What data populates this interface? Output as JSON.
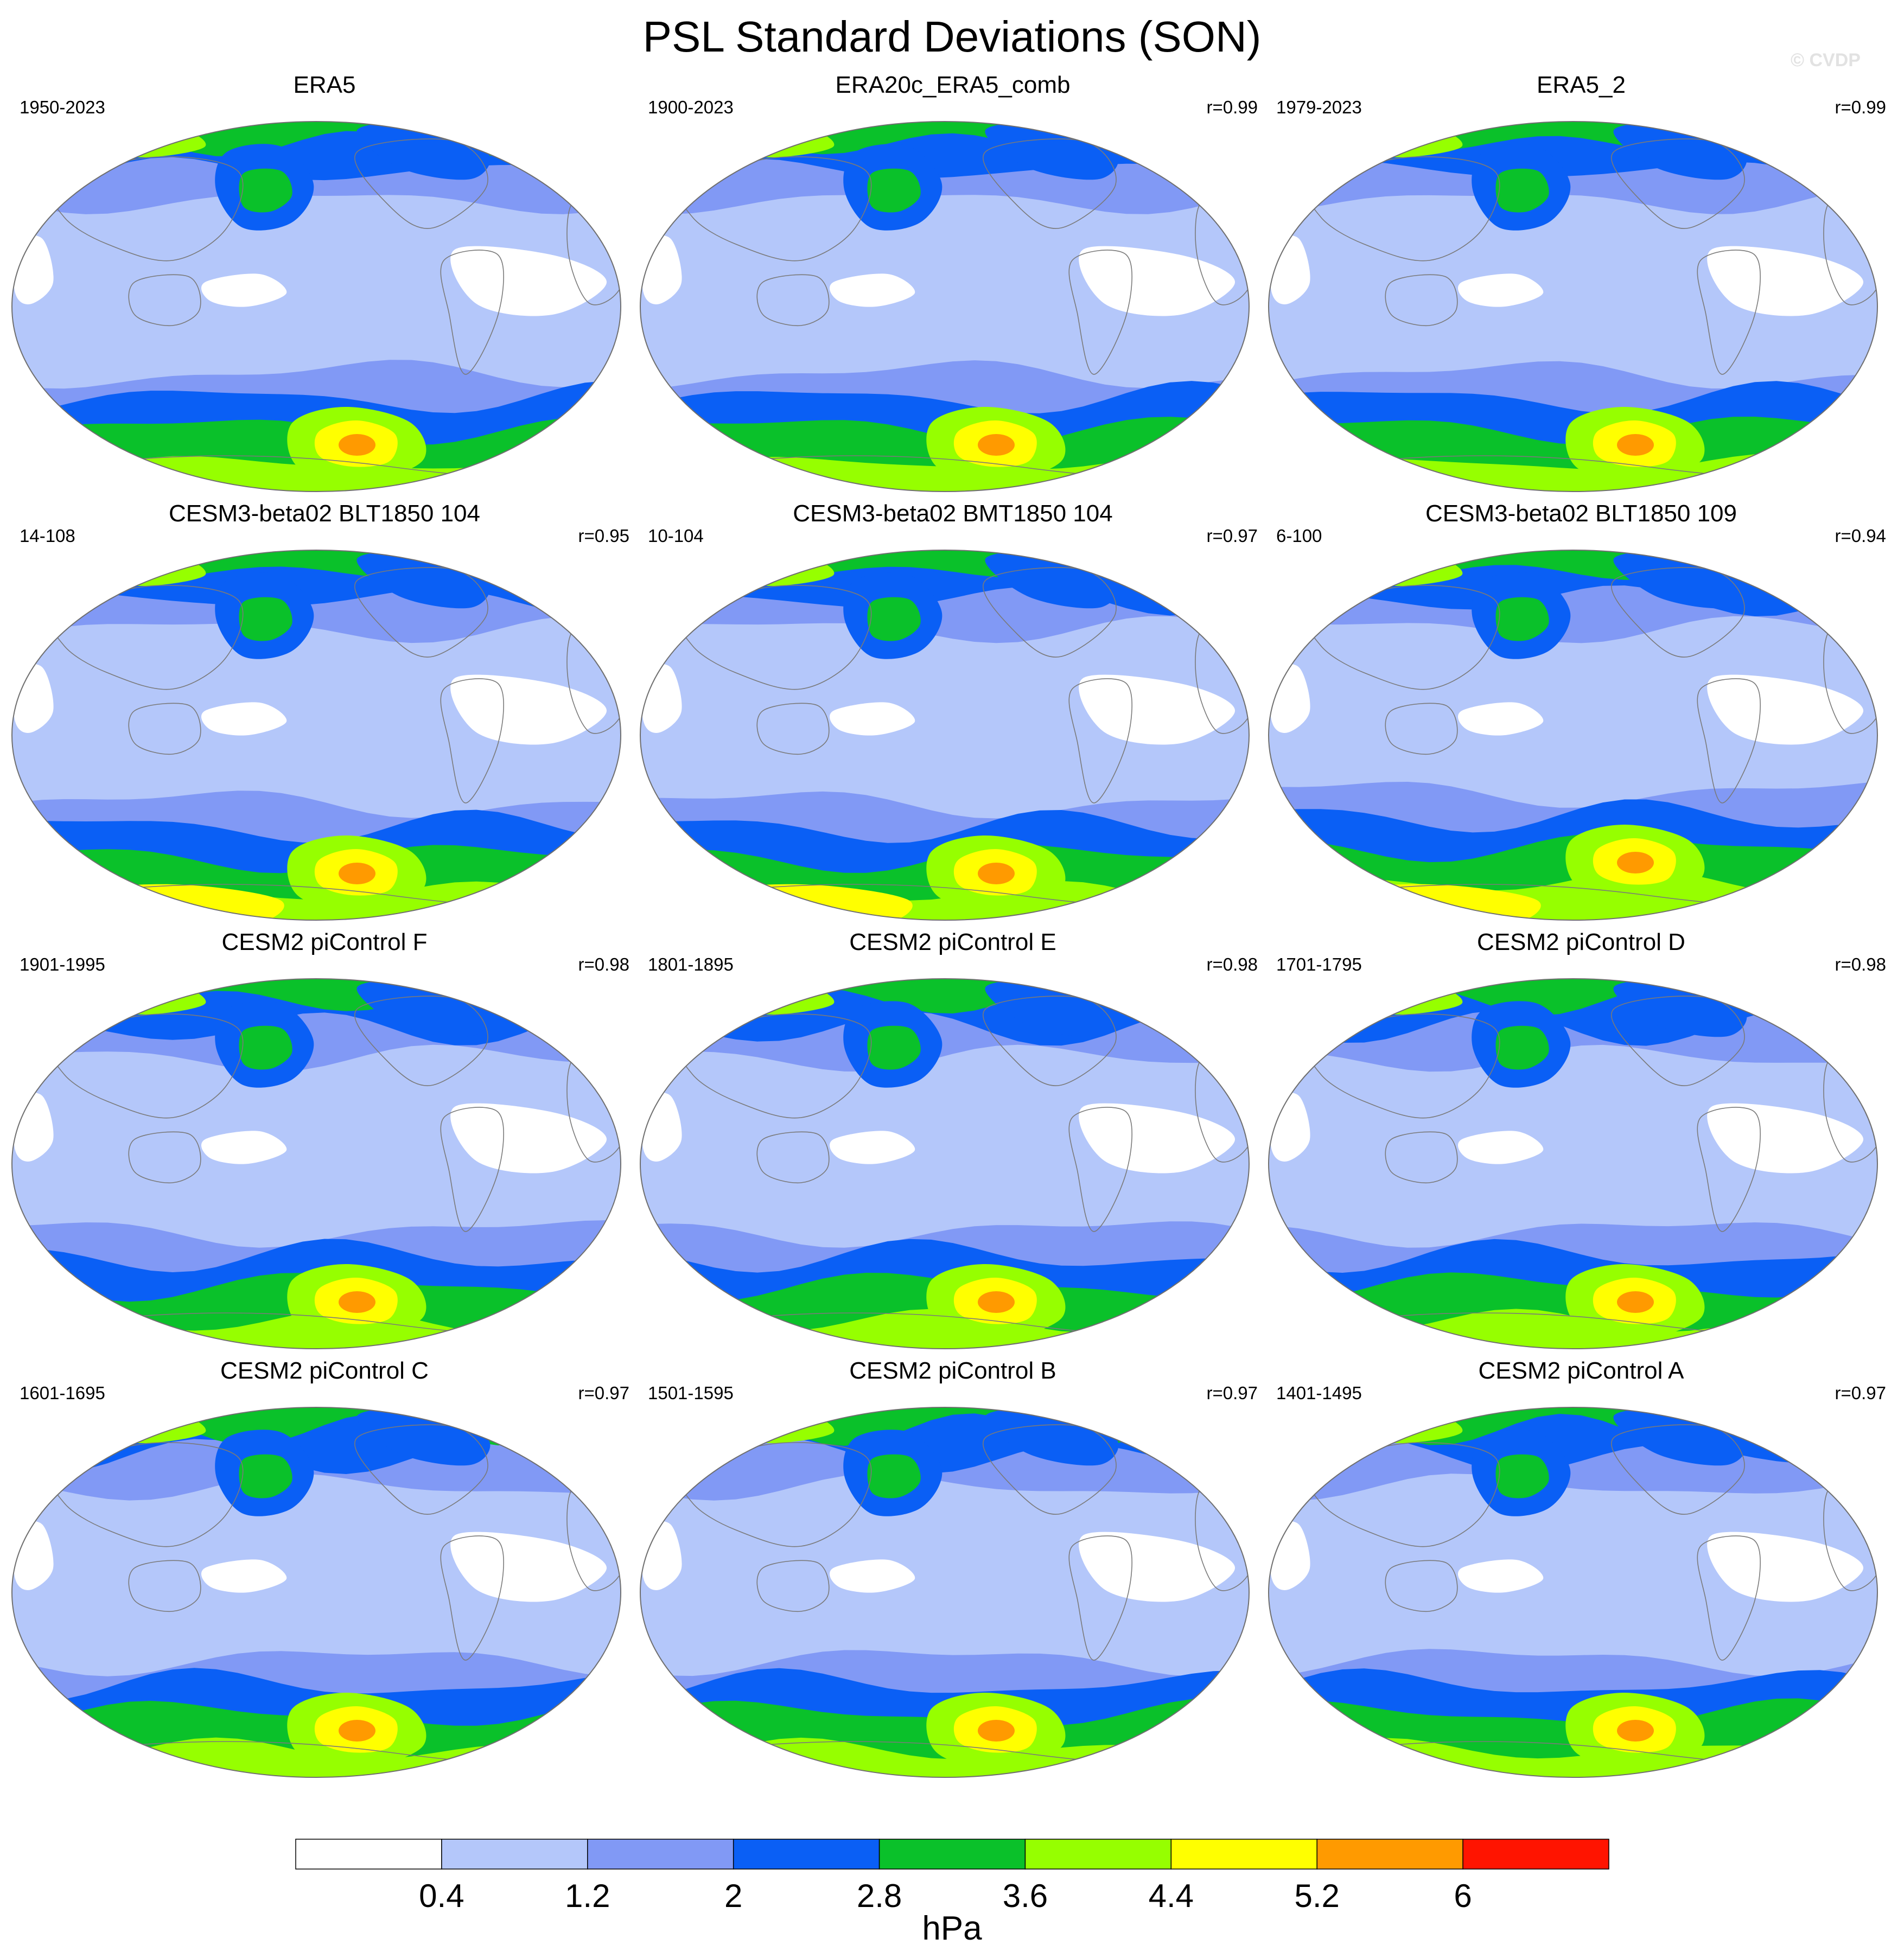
{
  "title": "PSL Standard Deviations (SON)",
  "watermark": "© CVDP",
  "colorbar": {
    "units": "hPa",
    "levels": [
      "0.4",
      "1.2",
      "2",
      "2.8",
      "3.6",
      "4.4",
      "5.2",
      "6"
    ],
    "colors": [
      "#ffffff",
      "#b4c7fa",
      "#8199f5",
      "#0a5ff5",
      "#0ac12a",
      "#96ff00",
      "#ffff00",
      "#ff9a00",
      "#ff1400"
    ]
  },
  "panels": [
    {
      "title": "ERA5",
      "period": "1950-2023",
      "corr": ""
    },
    {
      "title": "ERA20c_ERA5_comb",
      "period": "1900-2023",
      "corr": "r=0.99"
    },
    {
      "title": "ERA5_2",
      "period": "1979-2023",
      "corr": "r=0.99"
    },
    {
      "title": "CESM3-beta02 BLT1850 104",
      "period": "14-108",
      "corr": "r=0.95"
    },
    {
      "title": "CESM3-beta02 BMT1850 104",
      "period": "10-104",
      "corr": "r=0.97"
    },
    {
      "title": "CESM3-beta02 BLT1850 109",
      "period": "6-100",
      "corr": "r=0.94"
    },
    {
      "title": "CESM2 piControl F",
      "period": "1901-1995",
      "corr": "r=0.98"
    },
    {
      "title": "CESM2 piControl E",
      "period": "1801-1895",
      "corr": "r=0.98"
    },
    {
      "title": "CESM2 piControl D",
      "period": "1701-1795",
      "corr": "r=0.98"
    },
    {
      "title": "CESM2 piControl C",
      "period": "1601-1695",
      "corr": "r=0.97"
    },
    {
      "title": "CESM2 piControl B",
      "period": "1501-1595",
      "corr": "r=0.97"
    },
    {
      "title": "CESM2 piControl A",
      "period": "1401-1495",
      "corr": "r=0.97"
    }
  ]
}
